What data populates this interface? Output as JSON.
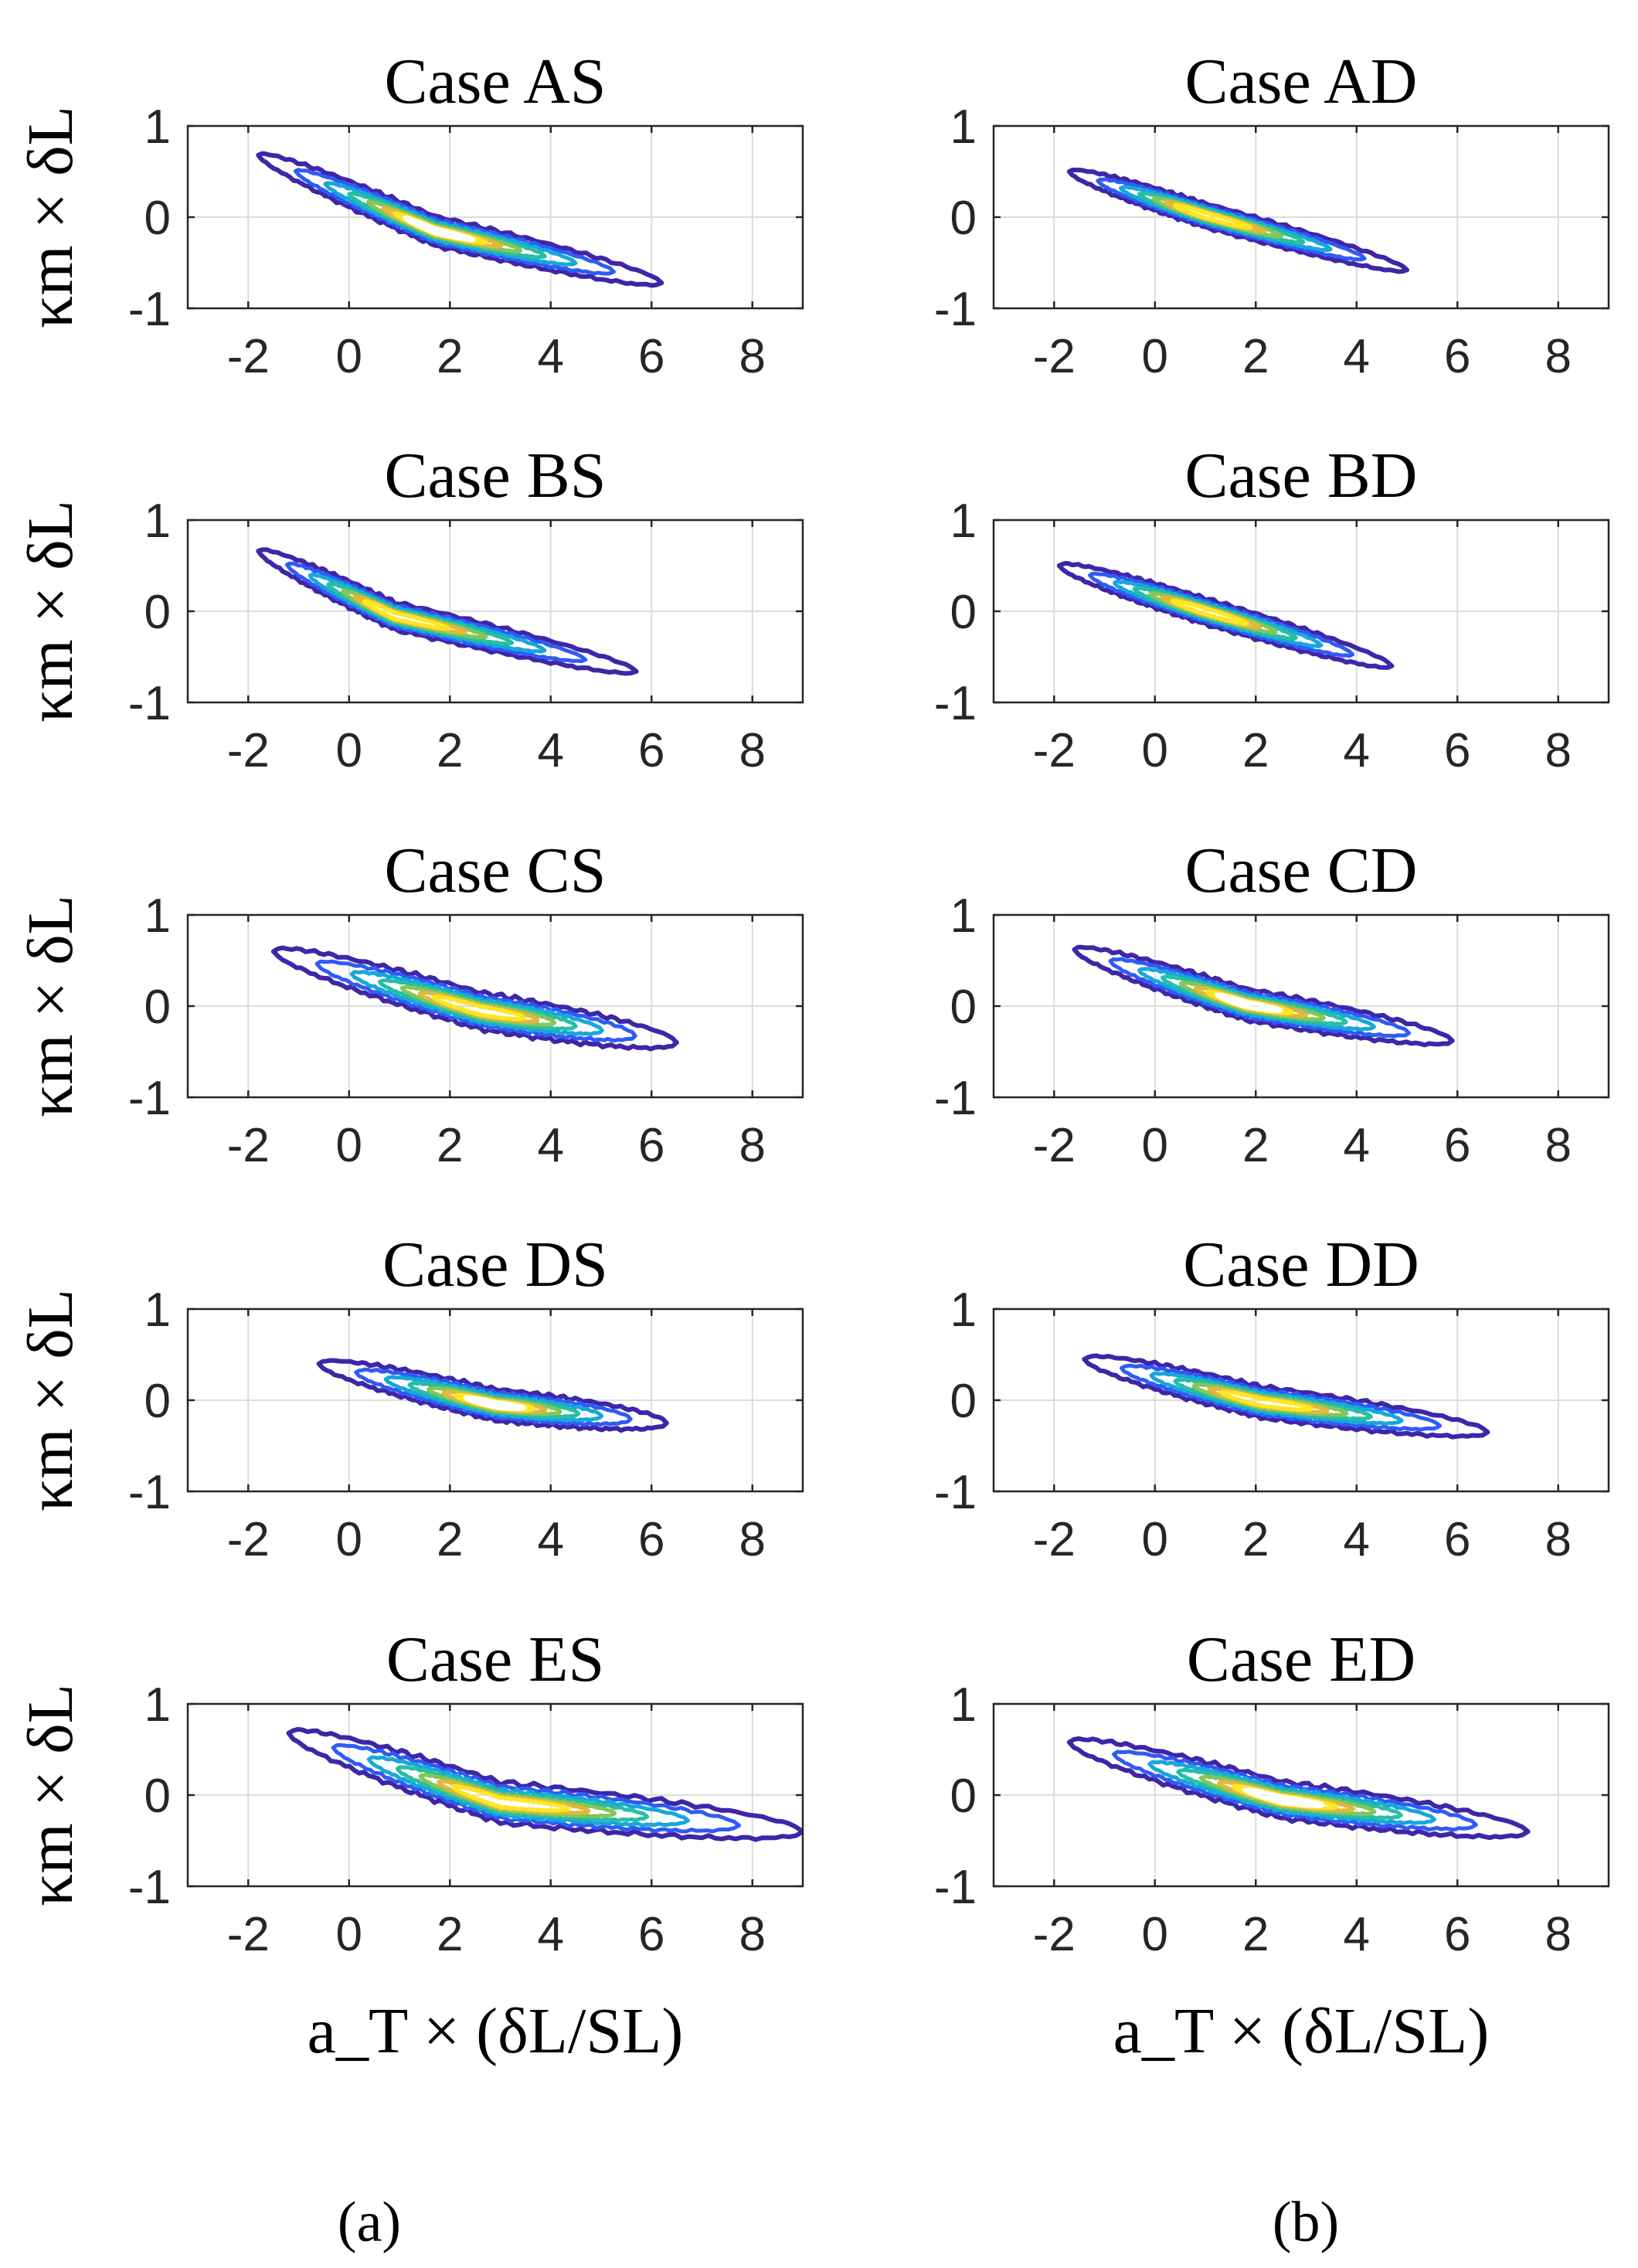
{
  "figure": {
    "panel_labels": [
      "(a)",
      "(b)"
    ],
    "colormap": [
      "#3e26a8",
      "#2f5bf5",
      "#16a7dc",
      "#25bfa4",
      "#84c658",
      "#e0b83c",
      "#fde725",
      "#ffffff"
    ]
  },
  "chart_data": [
    {
      "type": "contour",
      "title": "Case AS",
      "xlabel": "",
      "ylabel": "κm × δL",
      "xlim": [
        -3.2,
        9
      ],
      "ylim": [
        -1,
        1
      ],
      "xticks": [
        "-2",
        "0",
        "2",
        "4",
        "6",
        "8"
      ],
      "yticks": [
        "1",
        "0",
        "-1"
      ],
      "center": [
        1.7,
        -0.15
      ],
      "extent_x": [
        -1.8,
        6.2
      ],
      "endpoint_y": [
        0.68,
        -0.72
      ],
      "half_width": 0.16,
      "peak_level": 7
    },
    {
      "type": "contour",
      "title": "Case AD",
      "xlabel": "",
      "ylabel": "",
      "xlim": [
        -3.2,
        9
      ],
      "ylim": [
        -1,
        1
      ],
      "xticks": [
        "-2",
        "0",
        "2",
        "4",
        "6",
        "8"
      ],
      "yticks": [
        "1",
        "0",
        "-1"
      ],
      "center": [
        1.0,
        0.02
      ],
      "extent_x": [
        -1.7,
        5.0
      ],
      "endpoint_y": [
        0.5,
        -0.58
      ],
      "half_width": 0.13,
      "peak_level": 6
    },
    {
      "type": "contour",
      "title": "Case BS",
      "xlabel": "",
      "ylabel": "κm × δL",
      "xlim": [
        -3.2,
        9
      ],
      "ylim": [
        -1,
        1
      ],
      "xticks": [
        "-2",
        "0",
        "2",
        "4",
        "6",
        "8"
      ],
      "yticks": [
        "1",
        "0",
        "-1"
      ],
      "center": [
        0.9,
        -0.05
      ],
      "extent_x": [
        -1.8,
        5.7
      ],
      "endpoint_y": [
        0.66,
        -0.66
      ],
      "half_width": 0.15,
      "peak_level": 6
    },
    {
      "type": "contour",
      "title": "Case BD",
      "xlabel": "",
      "ylabel": "",
      "xlim": [
        -3.2,
        9
      ],
      "ylim": [
        -1,
        1
      ],
      "xticks": [
        "-2",
        "0",
        "2",
        "4",
        "6",
        "8"
      ],
      "yticks": [
        "1",
        "0",
        "-1"
      ],
      "center": [
        1.0,
        0.0
      ],
      "extent_x": [
        -1.9,
        4.7
      ],
      "endpoint_y": [
        0.5,
        -0.6
      ],
      "half_width": 0.14,
      "peak_level": 6
    },
    {
      "type": "contour",
      "title": "Case CS",
      "xlabel": "",
      "ylabel": "κm × δL",
      "xlim": [
        -3.2,
        9
      ],
      "ylim": [
        -1,
        1
      ],
      "xticks": [
        "-2",
        "0",
        "2",
        "4",
        "6",
        "8"
      ],
      "yticks": [
        "1",
        "0",
        "-1"
      ],
      "center": [
        2.6,
        -0.05
      ],
      "extent_x": [
        -1.5,
        6.5
      ],
      "endpoint_y": [
        0.6,
        -0.4
      ],
      "half_width": 0.2,
      "peak_level": 6
    },
    {
      "type": "contour",
      "title": "Case CD",
      "xlabel": "",
      "ylabel": "",
      "xlim": [
        -3.2,
        9
      ],
      "ylim": [
        -1,
        1
      ],
      "xticks": [
        "-2",
        "0",
        "2",
        "4",
        "6",
        "8"
      ],
      "yticks": [
        "1",
        "0",
        "-1"
      ],
      "center": [
        1.8,
        0.02
      ],
      "extent_x": [
        -1.6,
        5.9
      ],
      "endpoint_y": [
        0.62,
        -0.38
      ],
      "half_width": 0.17,
      "peak_level": 7
    },
    {
      "type": "contour",
      "title": "Case DS",
      "xlabel": "",
      "ylabel": "κm × δL",
      "xlim": [
        -3.2,
        9
      ],
      "ylim": [
        -1,
        1
      ],
      "xticks": [
        "-2",
        "0",
        "2",
        "4",
        "6",
        "8"
      ],
      "yticks": [
        "1",
        "0",
        "-1"
      ],
      "center": [
        2.9,
        -0.05
      ],
      "extent_x": [
        -0.6,
        6.3
      ],
      "endpoint_y": [
        0.4,
        -0.25
      ],
      "half_width": 0.17,
      "peak_level": 7
    },
    {
      "type": "contour",
      "title": "Case DD",
      "xlabel": "",
      "ylabel": "",
      "xlim": [
        -3.2,
        9
      ],
      "ylim": [
        -1,
        1
      ],
      "xticks": [
        "-2",
        "0",
        "2",
        "4",
        "6",
        "8"
      ],
      "yticks": [
        "1",
        "0",
        "-1"
      ],
      "center": [
        2.1,
        -0.02
      ],
      "extent_x": [
        -1.4,
        6.6
      ],
      "endpoint_y": [
        0.45,
        -0.35
      ],
      "half_width": 0.17,
      "peak_level": 6
    },
    {
      "type": "contour",
      "title": "Case ES",
      "xlabel": "a_T × (δL/SL)",
      "ylabel": "κm × δL",
      "xlim": [
        -3.2,
        9
      ],
      "ylim": [
        -1,
        1
      ],
      "xticks": [
        "-2",
        "0",
        "2",
        "4",
        "6",
        "8"
      ],
      "yticks": [
        "1",
        "0",
        "-1"
      ],
      "center": [
        3.0,
        -0.08
      ],
      "extent_x": [
        -1.2,
        9.0
      ],
      "endpoint_y": [
        0.68,
        -0.4
      ],
      "half_width": 0.22,
      "peak_level": 6
    },
    {
      "type": "contour",
      "title": "Case ED",
      "xlabel": "a_T × (δL/SL)",
      "ylabel": "",
      "xlim": [
        -3.2,
        9
      ],
      "ylim": [
        -1,
        1
      ],
      "xticks": [
        "-2",
        "0",
        "2",
        "4",
        "6",
        "8"
      ],
      "yticks": [
        "1",
        "0",
        "-1"
      ],
      "center": [
        2.5,
        -0.05
      ],
      "extent_x": [
        -1.7,
        7.4
      ],
      "endpoint_y": [
        0.58,
        -0.4
      ],
      "half_width": 0.2,
      "peak_level": 7
    }
  ]
}
